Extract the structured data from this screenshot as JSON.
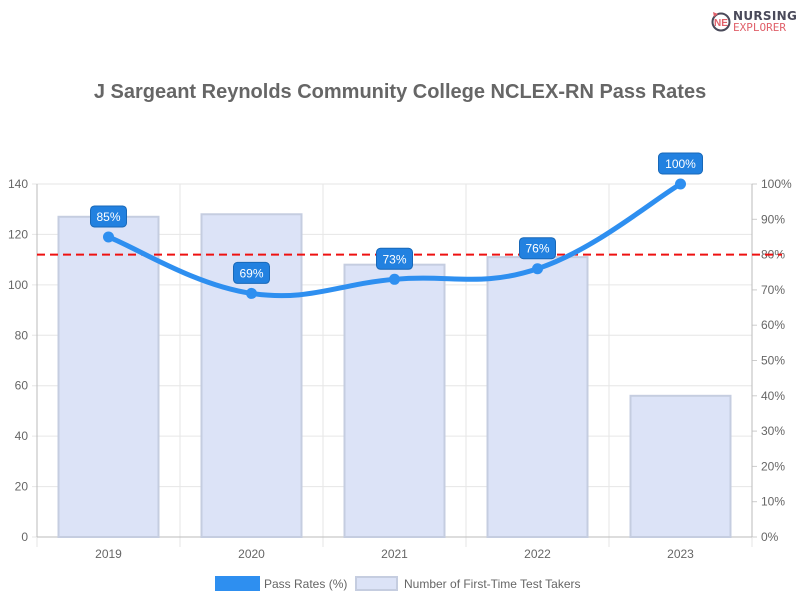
{
  "logo": {
    "line1": "NURSING",
    "line2": "EXPLORER"
  },
  "chart_data": {
    "type": "bar+line",
    "title": "J Sargeant Reynolds Community College NCLEX-RN Pass Rates",
    "categories": [
      "2019",
      "2020",
      "2021",
      "2022",
      "2023"
    ],
    "series": [
      {
        "name": "Pass Rates (%)",
        "type": "line",
        "axis": "right",
        "values": [
          85,
          69,
          73,
          76,
          100
        ],
        "color": "#2e8ff0",
        "data_labels": [
          "85%",
          "69%",
          "73%",
          "76%",
          "100%"
        ]
      },
      {
        "name": "Number of First-Time Test Takers",
        "type": "bar",
        "axis": "left",
        "values": [
          127,
          128,
          108,
          111,
          56
        ],
        "color": "#dce3f7",
        "border": "#c5cde0"
      }
    ],
    "y_left": {
      "range": [
        0,
        140
      ],
      "ticks": [
        "0",
        "20",
        "40",
        "60",
        "80",
        "100",
        "120",
        "140"
      ]
    },
    "y_right": {
      "range": [
        0,
        100
      ],
      "ticks": [
        "0%",
        "10%",
        "20%",
        "30%",
        "40%",
        "50%",
        "60%",
        "70%",
        "80%",
        "90%",
        "100%"
      ]
    },
    "reference_line": {
      "value": 80,
      "axis": "right",
      "style": "dashed",
      "color": "#ee1111"
    },
    "grid": true,
    "legend_position": "bottom"
  }
}
